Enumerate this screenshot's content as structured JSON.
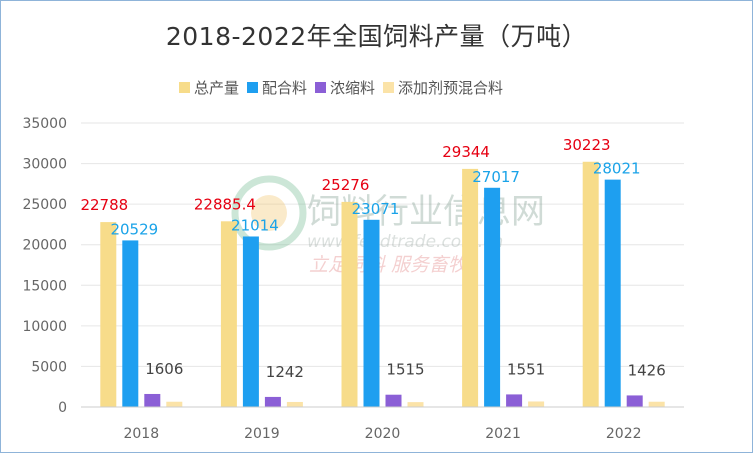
{
  "chart_data": {
    "type": "bar",
    "title": "2018-2022年全国饲料产量（万吨）",
    "categories": [
      "2018",
      "2019",
      "2020",
      "2021",
      "2022"
    ],
    "ylim": [
      0,
      35000
    ],
    "yticks": [
      0,
      5000,
      10000,
      15000,
      20000,
      25000,
      30000,
      35000
    ],
    "grid": true,
    "legend_position": "top",
    "series": [
      {
        "name": "总产量",
        "color": "#f7dc8a",
        "values": [
          22788,
          22885.4,
          25276,
          29344,
          30223
        ],
        "labels": [
          "22788",
          "22885.4",
          "25276",
          "29344",
          "30223"
        ],
        "label_color": "#e60012"
      },
      {
        "name": "配合料",
        "color": "#1e9ff0",
        "values": [
          20529,
          21014,
          23071,
          27017,
          28021
        ],
        "labels": [
          "20529",
          "21014",
          "23071",
          "27017",
          "28021"
        ],
        "label_color": "#1aa3e8"
      },
      {
        "name": "浓缩料",
        "color": "#8b5fd6",
        "values": [
          1606,
          1242,
          1515,
          1551,
          1426
        ],
        "labels": [
          "1606",
          "1242",
          "1515",
          "1551",
          "1426"
        ],
        "label_color": "#444444"
      },
      {
        "name": "添加剂预混合料",
        "color": "#fbe3a8",
        "values": [
          650,
          620,
          600,
          680,
          650
        ],
        "labels": [
          "",
          "",
          "",
          "",
          ""
        ],
        "label_color": "#444444"
      }
    ]
  },
  "watermark": {
    "name": "饲料行业信息网",
    "url": "www.feedtrade.com.cn",
    "slogan": "立足饲料  服务畜牧"
  }
}
